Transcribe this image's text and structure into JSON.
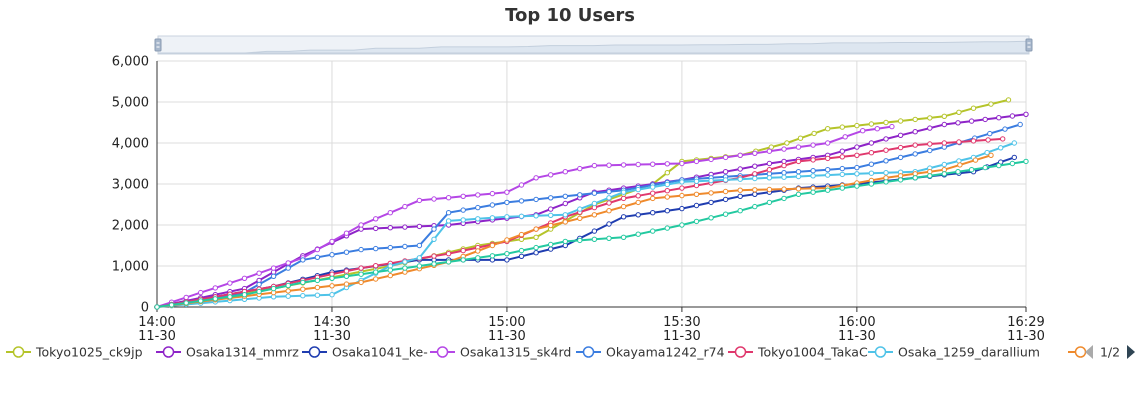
{
  "chart_data": {
    "type": "line",
    "title": "Top 10 Users",
    "xlabel": "",
    "ylabel": "",
    "ylim": [
      0,
      6000
    ],
    "yticks": [
      "0",
      "1,000",
      "2,000",
      "3,000",
      "4,000",
      "5,000",
      "6,000"
    ],
    "xlim": [
      "2023-11-30 14:00",
      "2023-11-30 16:29"
    ],
    "xticks": [
      {
        "time": "14:00",
        "date": "11-30"
      },
      {
        "time": "14:30",
        "date": "11-30"
      },
      {
        "time": "15:00",
        "date": "11-30"
      },
      {
        "time": "15:30",
        "date": "11-30"
      },
      {
        "time": "16:00",
        "date": "11-30"
      },
      {
        "time": "16:29",
        "date": "11-30"
      }
    ],
    "grid": true,
    "legend_position": "bottom",
    "legend_page": "1/2",
    "series": [
      {
        "name": "Tokyo1025_ck9jp",
        "color": "#b5c42a",
        "x": [
          "14:00",
          "14:20",
          "14:40",
          "14:55",
          "15:05",
          "15:15",
          "15:25",
          "15:30",
          "15:40",
          "15:48",
          "15:55",
          "16:05",
          "16:15",
          "16:20",
          "16:26"
        ],
        "y": [
          0,
          450,
          1000,
          1500,
          1700,
          2500,
          3000,
          3550,
          3700,
          4000,
          4350,
          4500,
          4650,
          4850,
          5050
        ]
      },
      {
        "name": "Osaka1314_mmrz",
        "color": "#8e24c8",
        "x": [
          "14:00",
          "14:15",
          "14:25",
          "14:35",
          "14:50",
          "15:05",
          "15:15",
          "15:30",
          "15:45",
          "15:55",
          "16:05",
          "16:15",
          "16:29"
        ],
        "y": [
          0,
          450,
          1250,
          1900,
          2000,
          2250,
          2800,
          3100,
          3500,
          3700,
          4100,
          4450,
          4700
        ]
      },
      {
        "name": "Osaka1041_ke-",
        "color": "#1f3db0",
        "x": [
          "14:00",
          "14:20",
          "14:30",
          "14:45",
          "15:00",
          "15:10",
          "15:20",
          "15:30",
          "15:40",
          "15:50",
          "16:00",
          "16:10",
          "16:20",
          "16:27"
        ],
        "y": [
          0,
          500,
          850,
          1150,
          1150,
          1500,
          2200,
          2400,
          2700,
          2900,
          3000,
          3150,
          3300,
          3650
        ]
      },
      {
        "name": "Osaka1315_sk4rd",
        "color": "#b547e6",
        "x": [
          "14:00",
          "14:15",
          "14:25",
          "14:35",
          "14:45",
          "15:00",
          "15:05",
          "15:15",
          "15:30",
          "15:45",
          "15:55",
          "16:01",
          "16:06"
        ],
        "y": [
          0,
          700,
          1200,
          2000,
          2600,
          2800,
          3150,
          3450,
          3500,
          3800,
          4000,
          4300,
          4400
        ]
      },
      {
        "name": "Okayama1242_r74",
        "color": "#3b7de0",
        "x": [
          "14:00",
          "14:15",
          "14:25",
          "14:35",
          "14:45",
          "14:50",
          "15:00",
          "15:10",
          "15:20",
          "15:30",
          "15:45",
          "16:00",
          "16:15",
          "16:28"
        ],
        "y": [
          0,
          350,
          1150,
          1400,
          1500,
          2300,
          2550,
          2700,
          2850,
          3100,
          3250,
          3400,
          3900,
          4450
        ]
      },
      {
        "name": "Tokyo1004_TakaC",
        "color": "#e0386d",
        "x": [
          "14:00",
          "14:20",
          "14:35",
          "14:50",
          "15:00",
          "15:10",
          "15:20",
          "15:30",
          "15:40",
          "15:50",
          "16:00",
          "16:10",
          "16:25"
        ],
        "y": [
          0,
          500,
          950,
          1300,
          1600,
          2200,
          2650,
          2900,
          3150,
          3550,
          3700,
          3950,
          4100
        ]
      },
      {
        "name": "Osaka_1259_darallium",
        "color": "#4fc3e8",
        "x": [
          "14:00",
          "14:20",
          "14:30",
          "14:40",
          "14:45",
          "14:50",
          "15:00",
          "15:10",
          "15:20",
          "15:30",
          "15:45",
          "16:00",
          "16:10",
          "16:20",
          "16:27"
        ],
        "y": [
          0,
          250,
          300,
          1000,
          1200,
          2100,
          2200,
          2250,
          2800,
          3050,
          3150,
          3250,
          3300,
          3650,
          4000
        ]
      },
      {
        "name": "",
        "color": "#ef8a2c",
        "x": [
          "14:00",
          "14:20",
          "14:35",
          "14:50",
          "15:05",
          "15:15",
          "15:25",
          "15:40",
          "15:55",
          "16:05",
          "16:15",
          "16:23"
        ],
        "y": [
          0,
          350,
          600,
          1100,
          1900,
          2250,
          2650,
          2850,
          2900,
          3150,
          3350,
          3700
        ]
      },
      {
        "name": "",
        "color": "#23c9a0",
        "x": [
          "14:00",
          "14:15",
          "14:25",
          "14:35",
          "14:45",
          "15:00",
          "15:10",
          "15:20",
          "15:30",
          "15:40",
          "15:50",
          "16:00",
          "16:15",
          "16:29"
        ],
        "y": [
          0,
          300,
          600,
          800,
          1000,
          1300,
          1600,
          1700,
          2000,
          2350,
          2750,
          2950,
          3250,
          3550
        ]
      }
    ]
  },
  "legend": {
    "items": [
      {
        "label": "Tokyo1025_ck9jp",
        "color": "#b5c42a"
      },
      {
        "label": "Osaka1314_mmrz",
        "color": "#8e24c8"
      },
      {
        "label": "Osaka1041_ke-",
        "color": "#1f3db0"
      },
      {
        "label": "Osaka1315_sk4rd",
        "color": "#b547e6"
      },
      {
        "label": "Okayama1242_r74",
        "color": "#3b7de0"
      },
      {
        "label": "Tokyo1004_TakaC",
        "color": "#e0386d"
      },
      {
        "label": "Osaka_1259_darallium",
        "color": "#4fc3e8"
      },
      {
        "label": "",
        "color": "#ef8a2c"
      }
    ],
    "page": "1/2",
    "prev_icon": "triangle-left-icon",
    "next_icon": "triangle-right-icon"
  },
  "datazoom": {
    "handle_icon": "slider-handle-icon",
    "fill_color": "#e4ecf5",
    "border_color": "#c9d3df"
  }
}
